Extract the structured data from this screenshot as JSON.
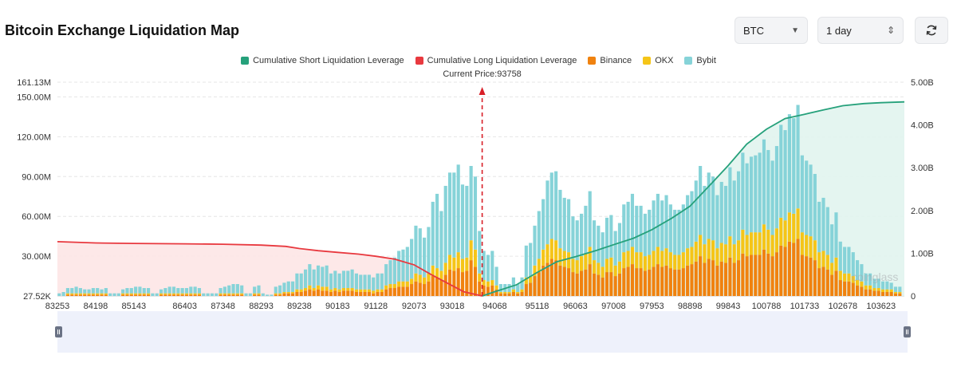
{
  "page": {
    "title": "Bitcoin Exchange Liquidation Map"
  },
  "controls": {
    "coin_select": "BTC",
    "range_select": "1 day",
    "refresh_icon": "refresh-icon"
  },
  "colors": {
    "short_line": "#26a17b",
    "long_line": "#e8393f",
    "binance": "#f0820f",
    "okx": "#f5c518",
    "bybit": "#86d3d8",
    "current_price_marker": "#d81e27"
  },
  "chart_data": {
    "type": "bar",
    "current_price_label": "Current Price:93758",
    "current_price": 93758,
    "legend": [
      {
        "key": "short",
        "label": "Cumulative Short Liquidation Leverage",
        "color": "#26a17b"
      },
      {
        "key": "long",
        "label": "Cumulative Long Liquidation Leverage",
        "color": "#e8393f"
      },
      {
        "key": "binance",
        "label": "Binance",
        "color": "#f0820f"
      },
      {
        "key": "okx",
        "label": "OKX",
        "color": "#f5c518"
      },
      {
        "key": "bybit",
        "label": "Bybit",
        "color": "#86d3d8"
      }
    ],
    "legend_position": "top-center",
    "x_range": [
      83253,
      104200
    ],
    "x_ticks": [
      "83253",
      "84198",
      "85143",
      "86403",
      "87348",
      "88293",
      "89238",
      "90183",
      "91128",
      "92073",
      "93018",
      "94068",
      "95118",
      "96063",
      "97008",
      "97953",
      "98898",
      "99843",
      "100788",
      "101733",
      "102678",
      "103623"
    ],
    "y_left": {
      "range": [
        0,
        161130000
      ],
      "ticks": [
        "27.52K",
        "30.00M",
        "60.00M",
        "90.00M",
        "120.00M",
        "150.00M",
        "161.13M"
      ],
      "tick_values": [
        0,
        30000000,
        60000000,
        90000000,
        120000000,
        150000000,
        161130000
      ]
    },
    "y_right": {
      "range": [
        0,
        5000000000
      ],
      "ticks": [
        "0",
        "1.00B",
        "2.00B",
        "3.00B",
        "4.00B",
        "5.00B"
      ],
      "tick_values": [
        0,
        1000000000,
        2000000000,
        3000000000,
        4000000000,
        5000000000
      ]
    },
    "grid": true,
    "watermark": "coinglass",
    "long_cumulative": [
      [
        83253,
        1270000000.0
      ],
      [
        84198,
        1240000000.0
      ],
      [
        85143,
        1230000000.0
      ],
      [
        86403,
        1220000000.0
      ],
      [
        87348,
        1210000000.0
      ],
      [
        88293,
        1190000000.0
      ],
      [
        88900,
        1160000000.0
      ],
      [
        89238,
        1110000000.0
      ],
      [
        89700,
        1060000000.0
      ],
      [
        90183,
        1020000000.0
      ],
      [
        90700,
        980000000.0
      ],
      [
        91128,
        930000000.0
      ],
      [
        91600,
        860000000.0
      ],
      [
        92073,
        730000000.0
      ],
      [
        92500,
        500000000.0
      ],
      [
        93018,
        240000000.0
      ],
      [
        93300,
        100000000.0
      ],
      [
        93758,
        0.0
      ]
    ],
    "short_cumulative": [
      [
        93758,
        0.0
      ],
      [
        94068,
        100000000.0
      ],
      [
        94600,
        260000000.0
      ],
      [
        95118,
        550000000.0
      ],
      [
        95600,
        800000000.0
      ],
      [
        96063,
        920000000.0
      ],
      [
        96600,
        1070000000.0
      ],
      [
        97008,
        1200000000.0
      ],
      [
        97500,
        1350000000.0
      ],
      [
        97953,
        1550000000.0
      ],
      [
        98450,
        1820000000.0
      ],
      [
        98898,
        2100000000.0
      ],
      [
        99400,
        2600000000.0
      ],
      [
        99843,
        3050000000.0
      ],
      [
        100300,
        3550000000.0
      ],
      [
        100788,
        3900000000.0
      ],
      [
        101250,
        4150000000.0
      ],
      [
        101733,
        4250000000.0
      ],
      [
        102200,
        4350000000.0
      ],
      [
        102678,
        4450000000.0
      ],
      [
        103200,
        4500000000.0
      ],
      [
        103623,
        4520000000.0
      ],
      [
        104200,
        4540000000.0
      ]
    ],
    "bar_price_step": 105,
    "bars": {
      "binance": [
        0,
        0,
        1,
        1,
        1,
        1,
        1,
        1,
        1,
        1,
        1,
        1,
        0,
        0,
        0,
        1,
        1,
        1,
        1,
        1,
        1,
        1,
        0,
        0,
        1,
        1,
        1,
        1,
        1,
        1,
        1,
        1,
        1,
        1,
        0,
        0,
        0,
        0,
        1,
        1,
        1,
        1,
        1,
        1,
        0,
        0,
        1,
        1,
        0,
        0,
        0,
        1,
        1,
        2,
        2,
        2,
        3,
        3,
        4,
        5,
        4,
        5,
        4,
        4,
        3,
        4,
        3,
        4,
        4,
        4,
        3,
        3,
        3,
        3,
        2,
        3,
        3,
        5,
        6,
        6,
        7,
        7,
        7,
        9,
        11,
        10,
        9,
        11,
        15,
        14,
        12,
        16,
        20,
        19,
        21,
        18,
        19,
        27,
        22,
        11,
        8,
        7,
        8,
        5,
        2,
        2,
        2,
        3,
        2,
        3,
        9,
        10,
        15,
        18,
        23,
        25,
        28,
        27,
        23,
        22,
        21,
        18,
        17,
        19,
        20,
        24,
        17,
        16,
        14,
        18,
        18,
        15,
        17,
        21,
        22,
        24,
        21,
        21,
        19,
        20,
        22,
        24,
        22,
        23,
        21,
        20,
        20,
        21,
        23,
        24,
        26,
        30,
        25,
        28,
        27,
        23,
        26,
        25,
        29,
        25,
        27,
        32,
        30,
        31,
        31,
        31,
        35,
        32,
        30,
        33,
        38,
        37,
        41,
        40,
        43,
        31,
        30,
        29,
        27,
        21,
        22,
        20,
        16,
        19,
        12,
        11,
        11,
        10,
        8,
        7,
        5,
        5,
        4,
        4,
        3,
        3,
        3,
        2,
        2
      ],
      "okx": [
        0,
        0,
        1,
        1,
        1,
        1,
        1,
        1,
        1,
        1,
        1,
        1,
        0,
        0,
        0,
        1,
        1,
        1,
        1,
        1,
        1,
        1,
        0,
        0,
        1,
        1,
        1,
        1,
        1,
        1,
        1,
        1,
        1,
        1,
        0,
        0,
        0,
        0,
        1,
        1,
        1,
        1,
        1,
        1,
        0,
        0,
        1,
        1,
        0,
        0,
        0,
        1,
        1,
        1,
        1,
        1,
        2,
        2,
        2,
        3,
        2,
        3,
        3,
        3,
        2,
        2,
        2,
        2,
        2,
        2,
        2,
        2,
        2,
        2,
        2,
        2,
        2,
        3,
        3,
        3,
        4,
        4,
        4,
        4,
        6,
        6,
        5,
        6,
        8,
        7,
        7,
        9,
        11,
        10,
        12,
        10,
        10,
        15,
        13,
        6,
        4,
        4,
        4,
        3,
        1,
        1,
        1,
        2,
        1,
        2,
        5,
        5,
        8,
        10,
        12,
        14,
        15,
        15,
        13,
        12,
        12,
        10,
        10,
        11,
        12,
        13,
        10,
        9,
        8,
        10,
        11,
        8,
        9,
        12,
        12,
        13,
        12,
        12,
        11,
        11,
        12,
        13,
        12,
        13,
        12,
        11,
        11,
        12,
        13,
        13,
        15,
        16,
        14,
        15,
        15,
        13,
        14,
        14,
        16,
        14,
        15,
        18,
        16,
        17,
        17,
        17,
        19,
        18,
        16,
        18,
        21,
        20,
        22,
        22,
        23,
        17,
        16,
        16,
        15,
        12,
        12,
        11,
        9,
        10,
        7,
        6,
        6,
        5,
        4,
        4,
        3,
        3,
        2,
        2,
        2,
        2,
        2,
        1,
        1
      ],
      "bybit": [
        2,
        3,
        4,
        4,
        5,
        4,
        3,
        3,
        4,
        4,
        3,
        4,
        2,
        2,
        2,
        3,
        4,
        4,
        5,
        5,
        4,
        4,
        2,
        2,
        3,
        4,
        5,
        5,
        4,
        4,
        4,
        5,
        5,
        4,
        2,
        2,
        2,
        2,
        4,
        5,
        6,
        7,
        7,
        6,
        2,
        2,
        5,
        6,
        2,
        1,
        1,
        5,
        6,
        7,
        8,
        8,
        12,
        12,
        14,
        16,
        14,
        15,
        15,
        16,
        12,
        13,
        12,
        13,
        13,
        14,
        12,
        11,
        11,
        11,
        10,
        12,
        12,
        16,
        18,
        20,
        23,
        24,
        26,
        30,
        36,
        35,
        30,
        35,
        48,
        56,
        45,
        58,
        62,
        64,
        66,
        56,
        54,
        56,
        55,
        32,
        22,
        20,
        22,
        14,
        6,
        6,
        6,
        9,
        6,
        9,
        24,
        25,
        30,
        36,
        38,
        48,
        50,
        52,
        44,
        40,
        40,
        32,
        30,
        32,
        36,
        42,
        30,
        28,
        26,
        31,
        32,
        26,
        29,
        36,
        37,
        40,
        35,
        35,
        32,
        34,
        38,
        40,
        38,
        40,
        36,
        34,
        34,
        36,
        40,
        42,
        46,
        52,
        44,
        50,
        48,
        40,
        46,
        44,
        52,
        48,
        52,
        58,
        54,
        57,
        58,
        60,
        64,
        60,
        56,
        62,
        70,
        68,
        74,
        72,
        78,
        58,
        56,
        54,
        50,
        38,
        40,
        36,
        29,
        34,
        22,
        20,
        20,
        18,
        15,
        13,
        9,
        9,
        7,
        7,
        6,
        6,
        5,
        4,
        4
      ]
    }
  }
}
